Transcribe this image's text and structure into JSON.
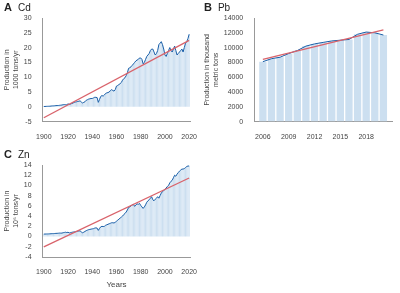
{
  "chart_data": [
    {
      "type": "bar",
      "annotation": "A",
      "title": "Cd",
      "ylabel": "Production in 1000 tons/yr",
      "x": [
        1900,
        1901,
        1902,
        1903,
        1904,
        1905,
        1906,
        1907,
        1908,
        1909,
        1910,
        1911,
        1912,
        1913,
        1914,
        1915,
        1916,
        1917,
        1918,
        1919,
        1920,
        1921,
        1922,
        1923,
        1924,
        1925,
        1926,
        1927,
        1928,
        1929,
        1930,
        1931,
        1932,
        1933,
        1934,
        1935,
        1936,
        1937,
        1938,
        1939,
        1940,
        1941,
        1942,
        1943,
        1944,
        1945,
        1946,
        1947,
        1948,
        1949,
        1950,
        1951,
        1952,
        1953,
        1954,
        1955,
        1956,
        1957,
        1958,
        1959,
        1960,
        1961,
        1962,
        1963,
        1964,
        1965,
        1966,
        1967,
        1968,
        1969,
        1970,
        1971,
        1972,
        1973,
        1974,
        1975,
        1976,
        1977,
        1978,
        1979,
        1980,
        1981,
        1982,
        1983,
        1984,
        1985,
        1986,
        1987,
        1988,
        1989,
        1990,
        1991,
        1992,
        1993,
        1994,
        1995,
        1996,
        1997,
        1998,
        1999,
        2000,
        2001,
        2002,
        2003,
        2004,
        2005,
        2006,
        2007,
        2008,
        2009,
        2010,
        2011,
        2012,
        2013,
        2014,
        2015,
        2016,
        2017,
        2018,
        2019,
        2020
      ],
      "series": [
        {
          "type": "bar",
          "color": "#ccdff0",
          "values": [
            0.1,
            0.12,
            0.14,
            0.16,
            0.18,
            0.2,
            0.25,
            0.3,
            0.32,
            0.35,
            0.4,
            0.42,
            0.44,
            0.5,
            0.55,
            0.6,
            0.7,
            0.75,
            0.72,
            0.68,
            1.0,
            0.8,
            0.9,
            1.1,
            1.2,
            1.5,
            1.6,
            1.7,
            1.8,
            1.9,
            2.0,
            1.6,
            1.3,
            1.5,
            1.7,
            2.2,
            2.4,
            2.6,
            2.7,
            2.8,
            2.8,
            3.0,
            3.2,
            3.2,
            3.1,
            1.5,
            2.5,
            3.5,
            3.8,
            3.6,
            4.0,
            4.5,
            4.7,
            4.8,
            5.0,
            5.5,
            5.8,
            5.5,
            5.3,
            5.8,
            7.0,
            7.2,
            7.5,
            7.8,
            8.2,
            9.0,
            9.5,
            9.8,
            10.5,
            11.5,
            13.0,
            13.2,
            13.5,
            14.0,
            14.5,
            15.0,
            15.5,
            15.8,
            16.0,
            16.5,
            16.5,
            16.0,
            14.5,
            15.0,
            16.0,
            17.0,
            17.5,
            18.0,
            19.0,
            19.5,
            19.5,
            18.5,
            17.5,
            18.0,
            19.0,
            21.0,
            21.5,
            22.0,
            21.0,
            19.5,
            17.5,
            17.0,
            18.0,
            19.0,
            20.0,
            19.0,
            18.5,
            19.5,
            20.5,
            19.0,
            17.5,
            18.0,
            18.5,
            19.0,
            19.5,
            18.5,
            20.0,
            21.5,
            22.0,
            23.0,
            24.5
          ]
        },
        {
          "type": "line",
          "color": "#1a5fa8",
          "values": [
            0.1,
            0.12,
            0.14,
            0.16,
            0.18,
            0.2,
            0.25,
            0.3,
            0.32,
            0.35,
            0.4,
            0.42,
            0.44,
            0.5,
            0.55,
            0.6,
            0.7,
            0.75,
            0.72,
            0.68,
            1.0,
            0.8,
            0.9,
            1.1,
            1.2,
            1.5,
            1.6,
            1.7,
            1.8,
            1.9,
            2.0,
            1.6,
            1.3,
            1.5,
            1.7,
            2.2,
            2.4,
            2.6,
            2.7,
            2.8,
            2.8,
            3.0,
            3.2,
            3.2,
            3.1,
            1.5,
            2.5,
            3.5,
            3.8,
            3.6,
            4.0,
            4.5,
            4.7,
            4.8,
            5.0,
            5.5,
            5.8,
            5.5,
            5.3,
            5.8,
            7.0,
            7.2,
            7.5,
            7.8,
            8.2,
            9.0,
            9.5,
            9.8,
            10.5,
            11.5,
            13.0,
            13.2,
            13.5,
            14.0,
            14.5,
            15.0,
            15.5,
            15.8,
            16.0,
            16.5,
            16.5,
            16.0,
            14.5,
            15.0,
            16.0,
            17.0,
            17.5,
            18.0,
            19.0,
            19.5,
            19.5,
            18.5,
            17.5,
            18.0,
            19.0,
            21.0,
            21.5,
            22.0,
            21.0,
            19.5,
            17.5,
            17.0,
            18.0,
            19.0,
            20.0,
            19.0,
            18.5,
            19.5,
            20.5,
            19.0,
            17.5,
            18.0,
            18.5,
            19.0,
            19.5,
            18.5,
            20.0,
            21.5,
            22.0,
            23.0,
            24.5
          ]
        },
        {
          "type": "line",
          "color": "#d9636b",
          "x": [
            1900,
            2020
          ],
          "values": [
            -3.70884,
            22.46553
          ]
        }
      ],
      "xlim": [
        1899,
        2021
      ],
      "xticks": [
        1900,
        1920,
        1940,
        1960,
        1980,
        2000,
        2020
      ],
      "ylim": [
        -5,
        30
      ],
      "yticks": [
        -5,
        0,
        5,
        10,
        15,
        20,
        25,
        30
      ],
      "grid": false
    },
    {
      "type": "bar",
      "annotation": "B",
      "title": "Pb",
      "ylabel": "Production in thousand metric tons",
      "x": [
        2006,
        2007,
        2008,
        2009,
        2010,
        2011,
        2012,
        2013,
        2014,
        2015,
        2016,
        2017,
        2018,
        2019,
        2020
      ],
      "series": [
        {
          "type": "bar",
          "color": "#ccdff0",
          "values": [
            8100,
            8500,
            8700,
            9200,
            9600,
            10200,
            10500,
            10700,
            10900,
            11000,
            11100,
            11800,
            12100,
            12000,
            11700
          ]
        },
        {
          "type": "line",
          "color": "#1a5fa8",
          "values": [
            8100,
            8500,
            8700,
            9200,
            9600,
            10200,
            10500,
            10700,
            10900,
            11000,
            11100,
            11800,
            12100,
            12000,
            11700
          ]
        },
        {
          "type": "line",
          "color": "#d9636b",
          "x": [
            2006,
            2020
          ],
          "values": [
            8404.1667,
            12409.1667
          ]
        }
      ],
      "xlim": [
        2005,
        2021
      ],
      "xticks": [
        2006,
        2009,
        2012,
        2015,
        2018
      ],
      "ylim": [
        0,
        14000
      ],
      "yticks": [
        0,
        2000,
        4000,
        6000,
        8000,
        10000,
        12000,
        14000
      ],
      "grid": false
    },
    {
      "type": "bar",
      "annotation": "C",
      "title": "Zn",
      "ylabel": "Production in 10⁶ tons/yr",
      "xlabel": "Years",
      "x": [
        1900,
        1901,
        1902,
        1903,
        1904,
        1905,
        1906,
        1907,
        1908,
        1909,
        1910,
        1911,
        1912,
        1913,
        1914,
        1915,
        1916,
        1917,
        1918,
        1919,
        1920,
        1921,
        1922,
        1923,
        1924,
        1925,
        1926,
        1927,
        1928,
        1929,
        1930,
        1931,
        1932,
        1933,
        1934,
        1935,
        1936,
        1937,
        1938,
        1939,
        1940,
        1941,
        1942,
        1943,
        1944,
        1945,
        1946,
        1947,
        1948,
        1949,
        1950,
        1951,
        1952,
        1953,
        1954,
        1955,
        1956,
        1957,
        1958,
        1959,
        1960,
        1961,
        1962,
        1963,
        1964,
        1965,
        1966,
        1967,
        1968,
        1969,
        1970,
        1971,
        1972,
        1973,
        1974,
        1975,
        1976,
        1977,
        1978,
        1979,
        1980,
        1981,
        1982,
        1983,
        1984,
        1985,
        1986,
        1987,
        1988,
        1989,
        1990,
        1991,
        1992,
        1993,
        1994,
        1995,
        1996,
        1997,
        1998,
        1999,
        2000,
        2001,
        2002,
        2003,
        2004,
        2005,
        2006,
        2007,
        2008,
        2009,
        2010,
        2011,
        2012,
        2013,
        2014,
        2015,
        2016,
        2017,
        2018,
        2019,
        2020
      ],
      "series": [
        {
          "type": "bar",
          "color": "#ccdff0",
          "values": [
            0.48,
            0.49,
            0.5,
            0.51,
            0.52,
            0.53,
            0.55,
            0.57,
            0.58,
            0.6,
            0.62,
            0.63,
            0.65,
            0.68,
            0.67,
            0.68,
            0.75,
            0.8,
            0.85,
            0.78,
            0.85,
            0.7,
            0.78,
            0.82,
            0.87,
            0.9,
            0.95,
            1.0,
            1.05,
            1.1,
            1.1,
            0.9,
            0.75,
            0.85,
            1.0,
            1.15,
            1.25,
            1.35,
            1.4,
            1.45,
            1.5,
            1.55,
            1.65,
            1.7,
            1.65,
            1.2,
            1.6,
            1.9,
            2.0,
            1.95,
            2.0,
            2.2,
            2.3,
            2.4,
            2.5,
            2.6,
            2.7,
            2.7,
            2.65,
            2.8,
            3.0,
            3.2,
            3.4,
            3.6,
            3.8,
            4.0,
            4.3,
            4.5,
            4.8,
            5.2,
            5.7,
            5.8,
            6.0,
            6.2,
            6.3,
            5.9,
            6.2,
            6.4,
            6.3,
            6.5,
            6.1,
            5.8,
            5.5,
            5.8,
            6.2,
            6.7,
            7.0,
            7.2,
            7.5,
            7.8,
            7.2,
            7.0,
            7.3,
            7.5,
            7.8,
            7.5,
            8.0,
            8.5,
            8.8,
            9.0,
            9.2,
            9.5,
            9.8,
            10.0,
            10.5,
            10.8,
            11.0,
            11.5,
            12.0,
            11.8,
            12.2,
            12.5,
            12.8,
            13.0,
            13.2,
            13.2,
            13.3,
            13.5,
            13.7,
            13.8,
            13.8
          ]
        },
        {
          "type": "line",
          "color": "#1a5fa8",
          "values": [
            0.48,
            0.49,
            0.5,
            0.51,
            0.52,
            0.53,
            0.55,
            0.57,
            0.58,
            0.6,
            0.62,
            0.63,
            0.65,
            0.68,
            0.67,
            0.68,
            0.75,
            0.8,
            0.85,
            0.78,
            0.85,
            0.7,
            0.78,
            0.82,
            0.87,
            0.9,
            0.95,
            1.0,
            1.05,
            1.1,
            1.1,
            0.9,
            0.75,
            0.85,
            1.0,
            1.15,
            1.25,
            1.35,
            1.4,
            1.45,
            1.5,
            1.55,
            1.65,
            1.7,
            1.65,
            1.2,
            1.6,
            1.9,
            2.0,
            1.95,
            2.0,
            2.2,
            2.3,
            2.4,
            2.5,
            2.6,
            2.7,
            2.7,
            2.65,
            2.8,
            3.0,
            3.2,
            3.4,
            3.6,
            3.8,
            4.0,
            4.3,
            4.5,
            4.8,
            5.2,
            5.7,
            5.8,
            6.0,
            6.2,
            6.3,
            5.9,
            6.2,
            6.4,
            6.3,
            6.5,
            6.1,
            5.8,
            5.5,
            5.8,
            6.2,
            6.7,
            7.0,
            7.2,
            7.5,
            7.8,
            7.2,
            7.0,
            7.3,
            7.5,
            7.8,
            7.5,
            8.0,
            8.5,
            8.8,
            9.0,
            9.2,
            9.5,
            9.8,
            10.0,
            10.5,
            10.8,
            11.0,
            11.5,
            12.0,
            11.8,
            12.2,
            12.5,
            12.8,
            13.0,
            13.2,
            13.2,
            13.3,
            13.5,
            13.7,
            13.8,
            13.8
          ]
        },
        {
          "type": "line",
          "color": "#d9636b",
          "x": [
            1900,
            2020
          ],
          "values": [
            -2.02788,
            11.45945
          ]
        }
      ],
      "xlim": [
        1899,
        2021
      ],
      "xticks": [
        1900,
        1920,
        1940,
        1960,
        1980,
        2000,
        2020
      ],
      "ylim": [
        -4,
        14
      ],
      "yticks": [
        -4,
        -2,
        0,
        2,
        4,
        6,
        8,
        10,
        12,
        14
      ],
      "grid": false
    }
  ]
}
